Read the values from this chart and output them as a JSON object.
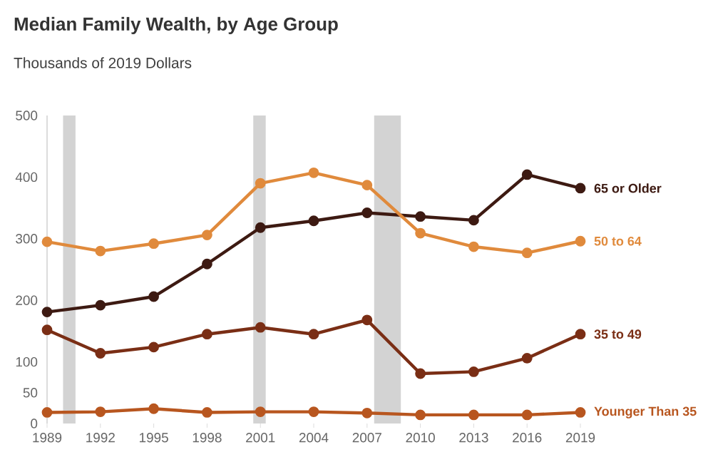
{
  "chart_data": {
    "type": "line",
    "title": "Median Family Wealth, by Age Group",
    "subtitle": "Thousands of 2019 Dollars",
    "x": [
      1989,
      1992,
      1995,
      1998,
      2001,
      2004,
      2007,
      2010,
      2013,
      2016,
      2019
    ],
    "series": [
      {
        "name": "65 or Older",
        "color": "#3d1a12",
        "values": [
          181,
          192,
          206,
          259,
          318,
          329,
          342,
          336,
          330,
          404,
          382
        ]
      },
      {
        "name": "50 to 64",
        "color": "#e08a3c",
        "values": [
          295,
          280,
          292,
          306,
          390,
          407,
          387,
          309,
          287,
          277,
          296
        ]
      },
      {
        "name": "35 to 49",
        "color": "#7a2e15",
        "values": [
          152,
          114,
          124,
          145,
          156,
          145,
          168,
          81,
          84,
          106,
          145
        ]
      },
      {
        "name": "Younger Than 35",
        "color": "#b8561f",
        "values": [
          18,
          19,
          24,
          18,
          19,
          19,
          17,
          14,
          14,
          14,
          18
        ]
      }
    ],
    "xlim": [
      1989,
      2019
    ],
    "xticks": [
      1989,
      1992,
      1995,
      1998,
      2001,
      2004,
      2007,
      2010,
      2013,
      2016,
      2019
    ],
    "ylim": [
      0,
      500
    ],
    "yticks": [
      0,
      50,
      100,
      200,
      300,
      400,
      500
    ],
    "bands": [
      {
        "axis": "x",
        "from": 1989.9,
        "to": 1990.6,
        "color": "#d3d3d3"
      },
      {
        "axis": "x",
        "from": 2000.6,
        "to": 2001.3,
        "color": "#d3d3d3"
      },
      {
        "axis": "x",
        "from": 2007.4,
        "to": 2008.9,
        "color": "#d3d3d3"
      }
    ],
    "grid": false,
    "legend": false,
    "marker": "circle",
    "line_style": "solid"
  }
}
